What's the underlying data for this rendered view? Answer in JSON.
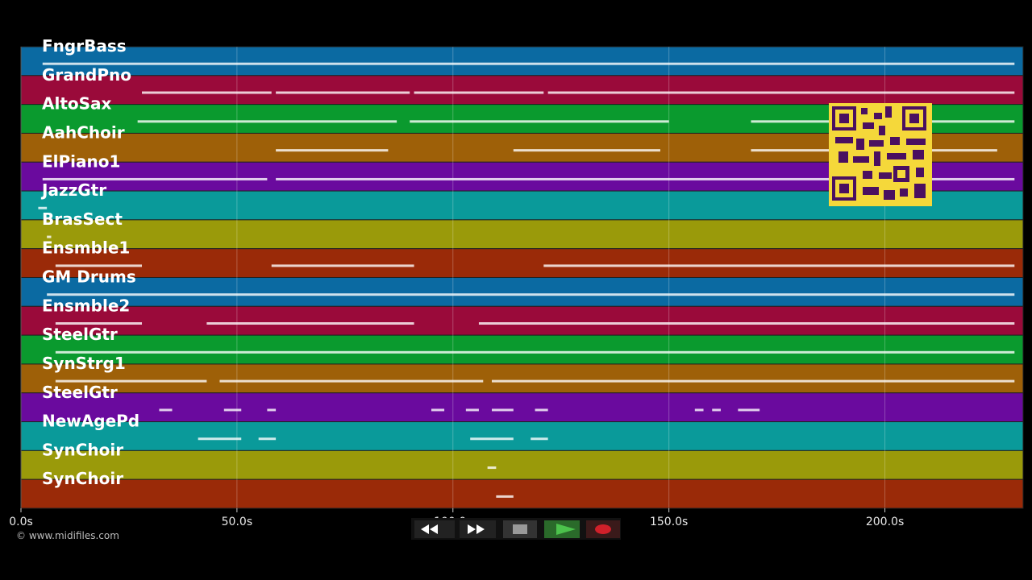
{
  "chart_data": {
    "type": "pianoroll",
    "xlim": [
      0,
      232
    ],
    "xticks": [
      {
        "value": 0,
        "label": "0.0s"
      },
      {
        "value": 50,
        "label": "50.0s"
      },
      {
        "value": 100,
        "label": "100.0s"
      },
      {
        "value": 150,
        "label": "150.0s"
      },
      {
        "value": 200,
        "label": "200.0s"
      }
    ],
    "grid": true,
    "tracks": [
      {
        "name": "FngrBass",
        "color": "#0b6aa2",
        "notes": [
          [
            5,
            230
          ]
        ]
      },
      {
        "name": "GrandPno",
        "color": "#9a0a3a",
        "notes": [
          [
            28,
            58
          ],
          [
            59,
            90
          ],
          [
            91,
            121
          ],
          [
            122,
            230
          ]
        ]
      },
      {
        "name": "AltoSax",
        "color": "#0a9a2e",
        "notes": [
          [
            27,
            87
          ],
          [
            90,
            150
          ],
          [
            169,
            230
          ]
        ]
      },
      {
        "name": "AahChoir",
        "color": "#9e6008",
        "notes": [
          [
            59,
            85
          ],
          [
            114,
            148
          ],
          [
            169,
            226
          ]
        ]
      },
      {
        "name": "ElPiano1",
        "color": "#6a0a9e",
        "notes": [
          [
            5,
            57
          ],
          [
            59,
            230
          ]
        ]
      },
      {
        "name": "JazzGtr",
        "color": "#0a9a9a",
        "notes": [
          [
            4,
            6
          ]
        ]
      },
      {
        "name": "BrasSect",
        "color": "#9a9a0a",
        "notes": [
          [
            6,
            7
          ]
        ]
      },
      {
        "name": "Ensmble1",
        "color": "#9a2a08",
        "notes": [
          [
            8,
            28
          ],
          [
            58,
            91
          ],
          [
            121,
            230
          ]
        ]
      },
      {
        "name": "GM Drums",
        "color": "#0b6aa2",
        "notes": [
          [
            6,
            230
          ]
        ]
      },
      {
        "name": "Ensmble2",
        "color": "#9a0a3a",
        "notes": [
          [
            8,
            28
          ],
          [
            43,
            91
          ],
          [
            106,
            230
          ]
        ]
      },
      {
        "name": "SteelGtr",
        "color": "#0a9a2e",
        "notes": [
          [
            8,
            230
          ]
        ]
      },
      {
        "name": "SynStrg1",
        "color": "#9e6008",
        "notes": [
          [
            8,
            43
          ],
          [
            46,
            107
          ],
          [
            109,
            230
          ]
        ]
      },
      {
        "name": "SteelGtr",
        "color": "#6a0a9e",
        "notes": [
          [
            32,
            35
          ],
          [
            47,
            51
          ],
          [
            57,
            59
          ],
          [
            95,
            98
          ],
          [
            103,
            106
          ],
          [
            109,
            114
          ],
          [
            119,
            122
          ],
          [
            156,
            158
          ],
          [
            160,
            162
          ],
          [
            166,
            171
          ]
        ]
      },
      {
        "name": "NewAgePd",
        "color": "#0a9a9a",
        "notes": [
          [
            41,
            51
          ],
          [
            55,
            59
          ],
          [
            104,
            114
          ],
          [
            118,
            122
          ]
        ]
      },
      {
        "name": "SynChoir",
        "color": "#9a9a0a",
        "notes": [
          [
            108,
            110
          ]
        ]
      },
      {
        "name": "SynChoir",
        "color": "#9a2a08",
        "notes": [
          [
            110,
            114
          ]
        ]
      }
    ]
  },
  "footer": "© www.midifiles.com"
}
